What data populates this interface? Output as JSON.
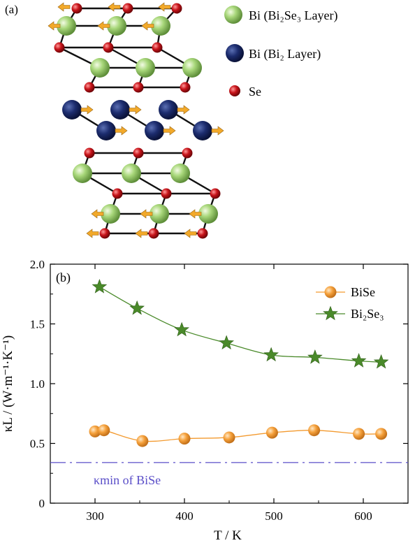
{
  "panel_a": {
    "label": "(a)",
    "legend": [
      {
        "key": "bi_bi2se3",
        "text": "Bi (Bi₂Se₃ Layer)",
        "color": "#8cc45a"
      },
      {
        "key": "bi_bi2",
        "text": "Bi (Bi₂ Layer)",
        "color": "#1a2a6a"
      },
      {
        "key": "se",
        "text": "Se",
        "color": "#c0151a"
      }
    ]
  },
  "chart_data": {
    "type": "line",
    "panel_label": "(b)",
    "xlabel": "T / K",
    "ylabel": "κL / (W·m⁻¹·K⁻¹)",
    "xlim": [
      250,
      650
    ],
    "ylim": [
      0,
      2.0
    ],
    "xticks": [
      300,
      400,
      500,
      600
    ],
    "yticks": [
      "0",
      "0.5",
      "1.0",
      "1.5",
      "2.0"
    ],
    "grid": false,
    "legend_position": "top-right",
    "series": [
      {
        "name": "BiSe",
        "marker": "circle",
        "color": "#f39a2f",
        "x": [
          300,
          310,
          353,
          400,
          450,
          498,
          545,
          595,
          620
        ],
        "y": [
          0.6,
          0.61,
          0.52,
          0.54,
          0.55,
          0.59,
          0.61,
          0.58,
          0.58
        ]
      },
      {
        "name": "Bi₂Se₃",
        "marker": "star",
        "color": "#4a8a2a",
        "x": [
          305,
          347,
          397,
          447,
          497,
          546,
          595,
          620
        ],
        "y": [
          1.81,
          1.63,
          1.45,
          1.34,
          1.24,
          1.22,
          1.19,
          1.18
        ]
      }
    ],
    "reference_line": {
      "label": "κmin of BiSe",
      "y": 0.34,
      "color": "#5a4ec8",
      "style": "dash-dot"
    }
  }
}
